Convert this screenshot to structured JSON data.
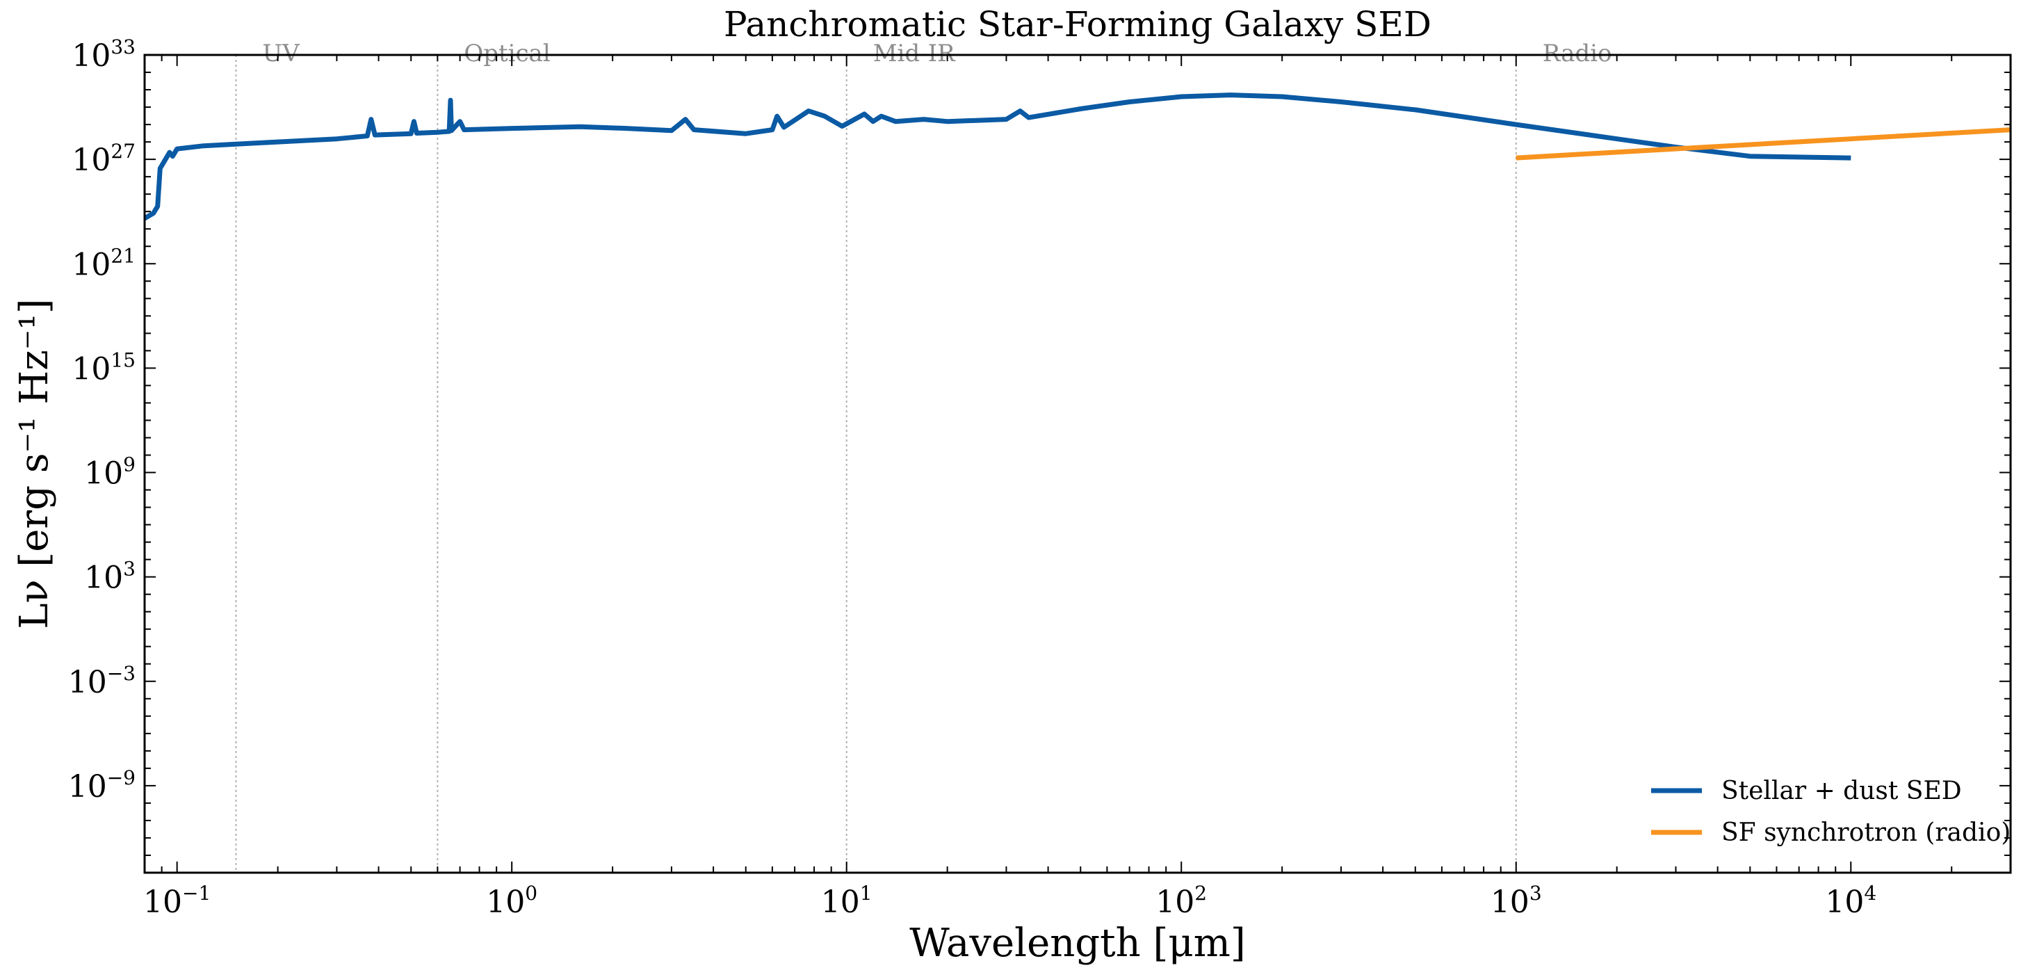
{
  "chart_data": {
    "type": "line",
    "title": "Panchromatic Star-Forming Galaxy SED",
    "xlabel": "Wavelength [μm]",
    "ylabel": "Lν [erg s⁻¹ Hz⁻¹]",
    "x_scale": "log",
    "y_scale": "log",
    "xlim": [
      0.08,
      30000
    ],
    "ylim": [
      1e-14,
      1e+33
    ],
    "x_ticks": [
      0.1,
      1,
      10,
      100,
      1000,
      10000
    ],
    "x_tick_labels": [
      {
        "base": "10",
        "exp": "−1"
      },
      {
        "base": "10",
        "exp": "0"
      },
      {
        "base": "10",
        "exp": "1"
      },
      {
        "base": "10",
        "exp": "2"
      },
      {
        "base": "10",
        "exp": "3"
      },
      {
        "base": "10",
        "exp": "4"
      }
    ],
    "y_ticks": [
      1e-09,
      0.001,
      1000.0,
      1000000000.0,
      1000000000000000.0,
      1e+21,
      1e+27,
      1e+33
    ],
    "y_tick_labels": [
      {
        "base": "10",
        "exp": "−9"
      },
      {
        "base": "10",
        "exp": "−3"
      },
      {
        "base": "10",
        "exp": "3"
      },
      {
        "base": "10",
        "exp": "9"
      },
      {
        "base": "10",
        "exp": "15"
      },
      {
        "base": "10",
        "exp": "21"
      },
      {
        "base": "10",
        "exp": "27"
      },
      {
        "base": "10",
        "exp": "33"
      }
    ],
    "regions": [
      {
        "label": "UV",
        "x": 0.15
      },
      {
        "label": "Optical",
        "x": 0.6
      },
      {
        "label": "Mid-IR",
        "x": 10
      },
      {
        "label": "Radio",
        "x": 1000
      }
    ],
    "legend_position": "lower-right",
    "grid": false,
    "series": [
      {
        "name": "Stellar + dust SED",
        "color": "#0b5aa4",
        "points": [
          [
            0.08,
            4e+23
          ],
          [
            0.085,
            8e+23
          ],
          [
            0.0875,
            2e+24
          ],
          [
            0.089,
            3e+26
          ],
          [
            0.095,
            2.5e+27
          ],
          [
            0.097,
            1.5e+27
          ],
          [
            0.1,
            4e+27
          ],
          [
            0.12,
            6e+27
          ],
          [
            0.15,
            7.5e+27
          ],
          [
            0.2,
            1e+28
          ],
          [
            0.3,
            1.5e+28
          ],
          [
            0.37,
            2.2e+28
          ],
          [
            0.38,
            2e+29
          ],
          [
            0.39,
            2.5e+28
          ],
          [
            0.5,
            3e+28
          ],
          [
            0.51,
            1.5e+29
          ],
          [
            0.52,
            3.2e+28
          ],
          [
            0.6,
            3.6e+28
          ],
          [
            0.65,
            4e+28
          ],
          [
            0.656,
            2.5e+30
          ],
          [
            0.66,
            4.5e+28
          ],
          [
            0.7,
            1.5e+29
          ],
          [
            0.72,
            5e+28
          ],
          [
            1.0,
            6e+28
          ],
          [
            1.6,
            7.5e+28
          ],
          [
            2.2,
            6e+28
          ],
          [
            3.0,
            4.5e+28
          ],
          [
            3.3,
            2e+29
          ],
          [
            3.5,
            5e+28
          ],
          [
            5.0,
            3e+28
          ],
          [
            6.0,
            5e+28
          ],
          [
            6.2,
            3e+29
          ],
          [
            6.5,
            7e+28
          ],
          [
            7.7,
            6e+29
          ],
          [
            8.6,
            3e+29
          ],
          [
            9.7,
            8e+28
          ],
          [
            11.3,
            4e+29
          ],
          [
            12,
            1.5e+29
          ],
          [
            12.7,
            3e+29
          ],
          [
            14,
            1.5e+29
          ],
          [
            17,
            2e+29
          ],
          [
            20,
            1.5e+29
          ],
          [
            30,
            2e+29
          ],
          [
            33,
            6e+29
          ],
          [
            35,
            2.5e+29
          ],
          [
            50,
            8e+29
          ],
          [
            70,
            2e+30
          ],
          [
            100,
            4e+30
          ],
          [
            140,
            5e+30
          ],
          [
            200,
            4e+30
          ],
          [
            300,
            2e+30
          ],
          [
            500,
            7e+29
          ],
          [
            1000,
            1e+29
          ],
          [
            2000,
            1.5e+28
          ],
          [
            3000,
            5e+27
          ],
          [
            5000,
            1.5e+27
          ],
          [
            10000,
            1.2e+27
          ]
        ]
      },
      {
        "name": "SF synchrotron (radio)",
        "color": "#f7931e",
        "points": [
          [
            1000,
            1.2e+27
          ],
          [
            30000,
            5e+28
          ]
        ]
      }
    ]
  }
}
